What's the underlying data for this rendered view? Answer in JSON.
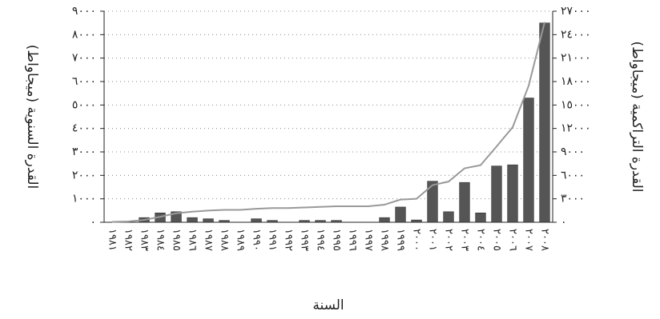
{
  "chart_data": {
    "type": "bar-line",
    "y_label": "القدرة السنوية (ميجاواط)",
    "y2_label": "القدرة التراكمية (ميجاواط)",
    "x_label": "السنة",
    "categories": [
      "١٩٨١",
      "١٩٨٢",
      "١٩٨٣",
      "١٩٨٤",
      "١٩٨٥",
      "١٩٨٦",
      "١٩٨٧",
      "١٩٨٨",
      "١٩٨٩",
      "١٩٩٠",
      "١٩٩١",
      "١٩٩٢",
      "١٩٩٣",
      "١٩٩٤",
      "١٩٩٥",
      "١٩٩٦",
      "١٩٩٧",
      "١٩٩٨",
      "١٩٩٩",
      "٢٠٠٠",
      "٢٠٠١",
      "٢٠٠٢",
      "٢٠٠٣",
      "٢٠٠٤",
      "٢٠٠٥",
      "٢٠٠٦",
      "٢٠٠٧",
      "٢٠٠٨"
    ],
    "series": [
      {
        "type": "bar",
        "color": "#555555",
        "axis": "y",
        "values": [
          0,
          0,
          200,
          400,
          450,
          200,
          150,
          80,
          0,
          150,
          80,
          0,
          80,
          80,
          80,
          0,
          0,
          200,
          650,
          100,
          1750,
          450,
          1700,
          400,
          2400,
          2450,
          5300,
          8500
        ]
      },
      {
        "type": "line",
        "color": "#999999",
        "axis": "y2",
        "values": [
          50,
          100,
          300,
          700,
          1150,
          1350,
          1500,
          1580,
          1580,
          1730,
          1810,
          1810,
          1890,
          1970,
          2050,
          2050,
          2050,
          2250,
          2900,
          3000,
          4750,
          5200,
          6900,
          7300,
          9700,
          12150,
          17450,
          25600
        ]
      }
    ],
    "ylim": [
      0,
      9000
    ],
    "yticks": [
      {
        "value": 0,
        "label": "٠"
      },
      {
        "value": 1000,
        "label": "١٠٠٠"
      },
      {
        "value": 2000,
        "label": "٢٠٠٠"
      },
      {
        "value": 3000,
        "label": "٣٠٠٠"
      },
      {
        "value": 4000,
        "label": "٤٠٠٠"
      },
      {
        "value": 5000,
        "label": "٥٠٠٠"
      },
      {
        "value": 6000,
        "label": "٦٠٠٠"
      },
      {
        "value": 7000,
        "label": "٧٠٠٠"
      },
      {
        "value": 8000,
        "label": "٨٠٠٠"
      },
      {
        "value": 9000,
        "label": "٩٠٠٠"
      }
    ],
    "y2lim": [
      0,
      27000
    ],
    "y2ticks": [
      {
        "value": 0,
        "label": "٠"
      },
      {
        "value": 3000,
        "label": "٣٠٠٠"
      },
      {
        "value": 6000,
        "label": "٦٠٠٠"
      },
      {
        "value": 9000,
        "label": "٩٠٠٠"
      },
      {
        "value": 12000,
        "label": "١٢٠٠٠"
      },
      {
        "value": 15000,
        "label": "١٥٠٠٠"
      },
      {
        "value": 18000,
        "label": "١٨٠٠٠"
      },
      {
        "value": 21000,
        "label": "٢١٠٠٠"
      },
      {
        "value": 24000,
        "label": "٢٤٠٠٠"
      },
      {
        "value": 27000,
        "label": "٢٧٠٠٠"
      }
    ],
    "grid": true
  }
}
